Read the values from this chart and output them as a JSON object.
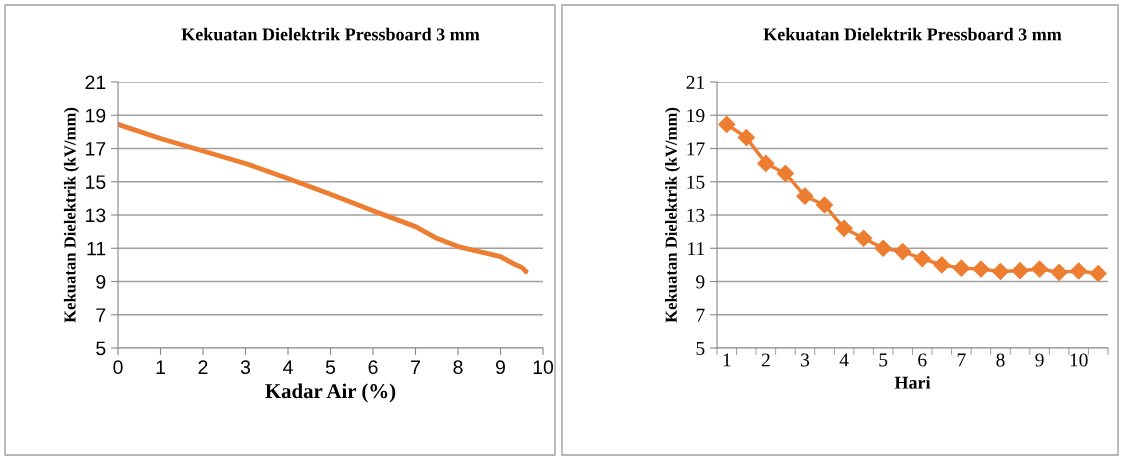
{
  "chart_data": [
    {
      "type": "line",
      "title": "Kekuatan Dielektrik Pressboard 3 mm",
      "xlabel": "Kadar Air (%)",
      "ylabel": "Kekuatan Dielektrik (kV/mm)",
      "x": [
        0,
        1,
        2,
        3,
        4,
        5,
        6,
        7,
        7.5,
        8,
        8.5,
        9,
        9.3,
        9.5,
        9.6
      ],
      "series": [
        {
          "color": "#ed7d31",
          "values": [
            18.45,
            17.6,
            16.85,
            16.1,
            15.2,
            14.25,
            13.26,
            12.3,
            11.6,
            11.1,
            10.8,
            10.5,
            10.07,
            9.85,
            9.6
          ]
        }
      ],
      "xlim": [
        0,
        10
      ],
      "xticks": [
        0,
        1,
        2,
        3,
        4,
        5,
        6,
        7,
        8,
        9,
        10
      ],
      "ylim": [
        5,
        21
      ],
      "yticks": [
        5,
        7,
        9,
        11,
        13,
        15,
        17,
        19,
        21
      ],
      "grid": "y",
      "legend": false,
      "marker": "none",
      "line_style": "solid"
    },
    {
      "type": "line",
      "title": "Kekuatan Dielektrik Pressboard 3 mm",
      "xlabel": "Hari",
      "ylabel": "Kekuatan Dielektrik (kV/mm)",
      "categories": [
        "1",
        null,
        "2",
        null,
        "3",
        null,
        "4",
        null,
        "5",
        null,
        "6",
        null,
        "7",
        null,
        "8",
        null,
        "9",
        null,
        "10",
        null
      ],
      "series": [
        {
          "color": "#ed7d31",
          "values": [
            18.45,
            17.66,
            16.1,
            15.5,
            14.13,
            13.6,
            12.2,
            11.6,
            11.0,
            10.8,
            10.37,
            10.0,
            9.8,
            9.75,
            9.6,
            9.65,
            9.75,
            9.55,
            9.63,
            9.48
          ]
        }
      ],
      "ylim": [
        5,
        21
      ],
      "yticks": [
        5,
        7,
        9,
        11,
        13,
        15,
        17,
        19,
        21
      ],
      "grid": "y",
      "legend": false,
      "marker": "diamond",
      "line_style": "solid"
    }
  ]
}
